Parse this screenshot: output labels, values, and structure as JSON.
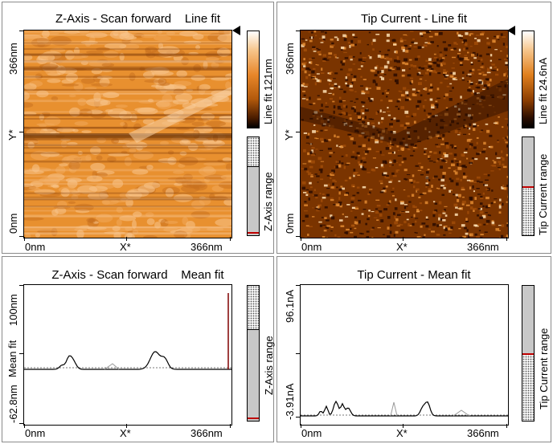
{
  "panels": {
    "z_line": {
      "title": "Z-Axis - Scan forward    Line fit",
      "y_top": "366nm",
      "y_mid": "Y*",
      "y_bottom": "0nm",
      "x_left": "0nm",
      "x_mid": "X*",
      "x_right": "366nm",
      "colorbar_label": "Line fit 121nm",
      "range_label": "Z-Axis range",
      "colorbar_colors": [
        "#ffffff",
        "#f0a050",
        "#c06010",
        "#3a1500",
        "#000000"
      ],
      "image_base": "#e8902f",
      "range_fill_fraction": 0.7,
      "range_marker_fraction": 0.02
    },
    "tip_line": {
      "title": "Tip Current - Line fit",
      "y_top": "366nm",
      "y_mid": "Y*",
      "y_bottom": "0nm",
      "x_left": "0nm",
      "x_mid": "X*",
      "x_right": "366nm",
      "colorbar_label": "Line fit 24.6nA",
      "range_label": "Tip Current range",
      "image_base": "#8a3c00",
      "range_fill_fraction": 0.5,
      "range_marker_fraction": 0.5
    },
    "z_mean": {
      "title": "Z-Axis - Scan forward    Mean fit",
      "y_top": "100nm",
      "y_mid": "Mean fit",
      "y_bottom": "-62.8nm",
      "x_left": "0nm",
      "x_mid": "X*",
      "x_right": "366nm",
      "range_label": "Z-Axis range",
      "range_fill_fraction": 0.7,
      "range_marker_fraction": 0.02
    },
    "tip_mean": {
      "title": "Tip Current - Mean fit",
      "y_top": "96.1nA",
      "y_mid": "",
      "y_bottom": "-3.91nA",
      "x_left": "0nm",
      "x_mid": "X*",
      "x_right": "366nm",
      "range_label": "Tip Current range",
      "range_fill_fraction": 0.5,
      "range_marker_fraction": 0.5
    }
  }
}
